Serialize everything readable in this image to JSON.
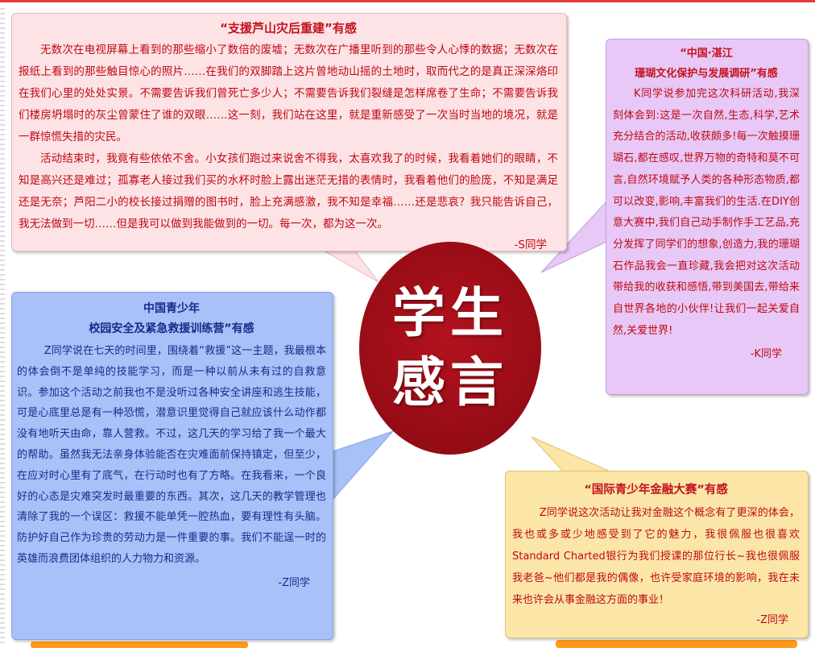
{
  "center": {
    "line1": "学生",
    "line2": "感言"
  },
  "colors": {
    "pink_bg": "#fde3e6",
    "purple_bg": "#e7c8f7",
    "blue_bg": "#a9c0f8",
    "yellow_bg": "#fbe6a8",
    "circle": "#9a0d17",
    "red_text": "#c00812",
    "blue_text": "#1a2a8a"
  },
  "pink": {
    "title": "“支援芦山灾后重建”有感",
    "p1": "无数次在电视屏幕上看到的那些缩小了数倍的废墟；无数次在广播里听到的那些令人心悸的数据；无数次在报纸上看到的那些触目惊心的照片……在我们的双脚踏上这片曾地动山摇的土地时，取而代之的是真正深深烙印在我们心里的处处实景。不需要告诉我们曾死亡多少人；不需要告诉我们裂缝是怎样席卷了生命；不需要告诉我们楼房坍塌时的灰尘曾蒙住了谁的双眼……这一刻，我们站在这里，就是重新感受了一次当时当地的境况，就是一群惊慌失措的灾民。",
    "p2": "活动结束时，我竟有些依依不舍。小女孩们跑过来说舍不得我，太喜欢我了的时候，我看着她们的眼睛，不知是高兴还是难过；孤寡老人接过我们买的水杯时脸上露出迷茫无措的表情时，我看着他们的脸庞，不知是满足还是无奈；芦阳二小的校长接过捐赠的图书时，脸上充满感激，我不知是幸福……还是悲哀？我只能告诉自己，我无法做到一切……但是我可以做到我能做到的一切。每一次，都为这一次。",
    "signature": "-S同学"
  },
  "purple": {
    "title_line1": "“中国·湛江",
    "title_line2": "珊瑚文化保护与发展调研”有感",
    "p1": "K同学说参加完这次科研活动,我深刻体会到:这是一次自然,生态,科学,艺术充分结合的活动,收获颇多!每一次触摸珊瑚石,都在感叹,世界万物的奇特和莫不可言,自然环境赋予人类的各种形态物质,都可以改变,影响,丰富我们的生活.在DIY创意大赛中,我们自己动手制作手工艺品,充分发挥了同学们的想象,创造力,我的珊瑚石作品我会一直珍藏,我会把对这次活动带给我的收获和感悟,带到美国去,带给来自世界各地的小伙伴!让我们一起关爱自然,关爱世界!",
    "signature": "-K同学"
  },
  "blue": {
    "title_line1": "中国青少年",
    "title_line2": "校园安全及紧急救援训练营”有感",
    "p1": "Z同学说在七天的时间里，围绕着“救援”这一主题，我最根本的体会倒不是单纯的技能学习，而是一种以前从未有过的自救意识。参加这个活动之前我也不是没听过各种安全讲座和逃生技能，可是心底里总是有一种恐慌，潜意识里觉得自己就应该什么动作都没有地听天由命，靠人营救。不过，这几天的学习给了我一个最大的帮助。虽然我无法亲身体验能否在灾难面前保持镇定，但至少，在应对时心里有了底气，在行动时也有了方略。在我看来，一个良好的心态是灾难突发时最重要的东西。其次，这几天的教学管理也清除了我的一个误区：救援不能单凭一腔热血，要有理性有头脑。防护好自己作为珍贵的劳动力是一件重要的事。我们不能逞一时的英雄而浪费团体组织的人力物力和资源。",
    "signature": "-Z同学"
  },
  "yellow": {
    "title": "“国际青少年金融大赛”有感",
    "p1": "Z同学说这次活动让我对金融这个概念有了更深的体会，我也或多或少地感受到了它的魅力，我很佩服也很喜欢Standard Charted银行为我们授课的那位行长~我也很佩服我老爸~他们都是我的偶像，也许受家庭环境的影响，我在未来也许会从事金融这方面的事业！",
    "signature": "-Z同学"
  }
}
